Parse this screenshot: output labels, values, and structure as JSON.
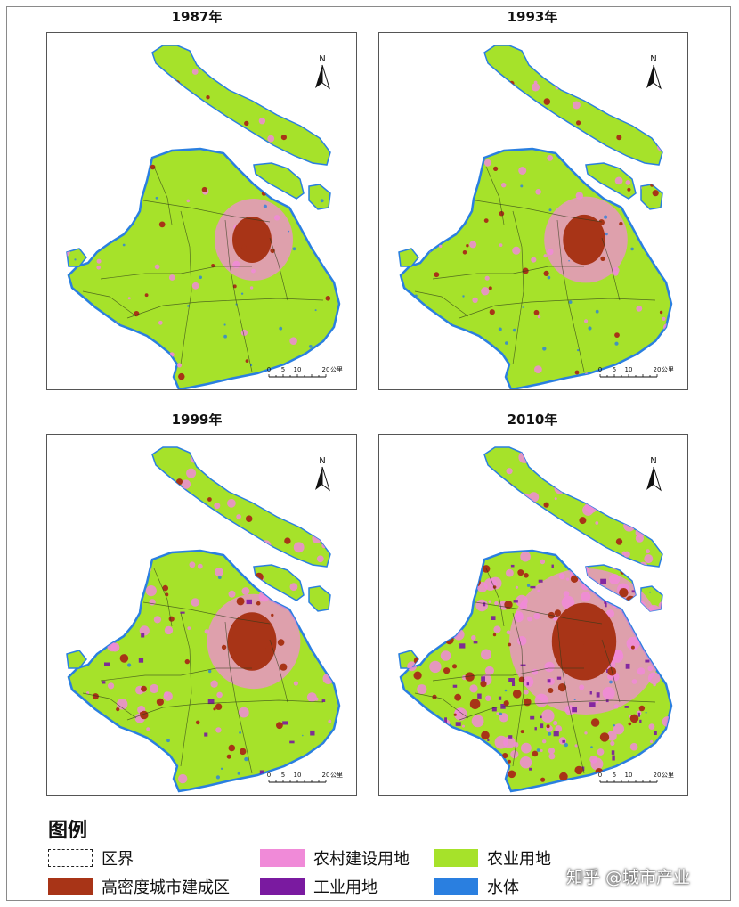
{
  "maps": [
    {
      "title": "1987年",
      "urban": 1,
      "rural": 1,
      "industrial": 0,
      "north": "N",
      "scale_ticks": [
        "0",
        "5",
        "10",
        "20"
      ],
      "scale_unit": "公里"
    },
    {
      "title": "1993年",
      "urban": 1.2,
      "rural": 1.2,
      "industrial": 0,
      "north": "N",
      "scale_ticks": [
        "0",
        "5",
        "10",
        "20"
      ],
      "scale_unit": "公里"
    },
    {
      "title": "1999年",
      "urban": 1.7,
      "rural": 1.6,
      "industrial": 0.2,
      "north": "N",
      "scale_ticks": [
        "0",
        "5",
        "10",
        "20"
      ],
      "scale_unit": "公里"
    },
    {
      "title": "2010年",
      "urban": 3.2,
      "rural": 4,
      "industrial": 1,
      "north": "N",
      "scale_ticks": [
        "0",
        "5",
        "10",
        "20"
      ],
      "scale_unit": "公里"
    }
  ],
  "legend": {
    "title": "图例",
    "items": [
      {
        "label": "区界",
        "color": "#ffffff"
      },
      {
        "label": "农村建设用地",
        "color": "#f08ad8"
      },
      {
        "label": "农业用地",
        "color": "#a6e22a"
      },
      {
        "label": "高密度城市建成区",
        "color": "#a83417"
      },
      {
        "label": "工业用地",
        "color": "#7a1aa0"
      },
      {
        "label": "水体",
        "color": "#2a7fe0"
      }
    ]
  },
  "colors": {
    "agriculture": "#a6e22a",
    "rural": "#f08ad8",
    "urban": "#a83417",
    "industrial": "#7a1aa0",
    "water": "#2a7fe0",
    "boundary": "#2d3a1a"
  },
  "watermark": "知乎 @城市产业"
}
